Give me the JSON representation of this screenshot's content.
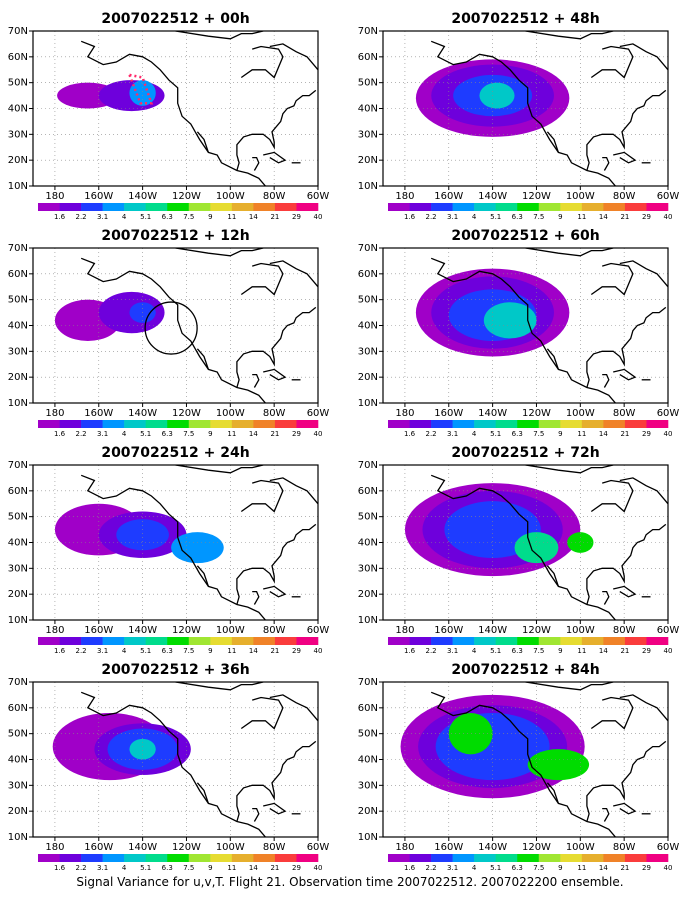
{
  "chart_data": {
    "type": "heatmap",
    "caption": "Signal Variance for u,v,T. Flight 21. Observation time 2007022512. 2007022200 ensemble.",
    "colorbar": {
      "colors": [
        "#a000c8",
        "#6e00dc",
        "#1e3cff",
        "#0096ff",
        "#00c8c8",
        "#00dc8c",
        "#00dc00",
        "#a0e632",
        "#e6dc32",
        "#e6af2d",
        "#f08228",
        "#fa3c3c",
        "#f00082"
      ],
      "labels": [
        "1.6",
        "2.2",
        "3.1",
        "4",
        "5.1",
        "6.3",
        "7.5",
        "9",
        "11",
        "14",
        "21",
        "29",
        "40"
      ]
    },
    "x_ticks": [
      "180",
      "160W",
      "140W",
      "120W",
      "100W",
      "80W",
      "60W"
    ],
    "y_ticks": [
      "10N",
      "20N",
      "30N",
      "40N",
      "50N",
      "60N",
      "70N"
    ],
    "xlim": [
      -190,
      -60
    ],
    "ylim": [
      10,
      70
    ],
    "panels": [
      {
        "title": "2007022512 + 00h",
        "blobs": [
          [
            -165,
            45,
            14,
            5,
            0
          ],
          [
            -145,
            45,
            15,
            6,
            1
          ],
          [
            -140,
            46,
            6,
            5,
            3
          ]
        ],
        "annotation": "flight-box"
      },
      {
        "title": "2007022512 + 12h",
        "blobs": [
          [
            -165,
            42,
            15,
            8,
            0
          ],
          [
            -145,
            45,
            15,
            8,
            1
          ],
          [
            -140,
            45,
            6,
            4,
            2
          ]
        ],
        "annotation": "circle"
      },
      {
        "title": "2007022512 + 24h",
        "blobs": [
          [
            -160,
            45,
            20,
            10,
            0
          ],
          [
            -140,
            43,
            20,
            9,
            1
          ],
          [
            -140,
            43,
            12,
            6,
            2
          ],
          [
            -115,
            38,
            12,
            6,
            3
          ]
        ]
      },
      {
        "title": "2007022512 + 36h",
        "blobs": [
          [
            -155,
            45,
            26,
            13,
            0
          ],
          [
            -140,
            44,
            22,
            10,
            1
          ],
          [
            -140,
            44,
            16,
            8,
            2
          ],
          [
            -140,
            44,
            6,
            4,
            4
          ]
        ]
      },
      {
        "title": "2007022512 + 48h",
        "blobs": [
          [
            -140,
            44,
            35,
            15,
            0
          ],
          [
            -140,
            45,
            28,
            12,
            1
          ],
          [
            -140,
            45,
            18,
            8,
            2
          ],
          [
            -138,
            45,
            8,
            5,
            4
          ]
        ]
      },
      {
        "title": "2007022512 + 60h",
        "blobs": [
          [
            -140,
            45,
            35,
            17,
            0
          ],
          [
            -140,
            45,
            28,
            14,
            1
          ],
          [
            -140,
            44,
            20,
            10,
            2
          ],
          [
            -132,
            42,
            12,
            7,
            4
          ]
        ]
      },
      {
        "title": "2007022512 + 72h",
        "blobs": [
          [
            -140,
            45,
            40,
            18,
            0
          ],
          [
            -140,
            45,
            32,
            15,
            1
          ],
          [
            -140,
            45,
            22,
            11,
            2
          ],
          [
            -120,
            38,
            10,
            6,
            5
          ],
          [
            -100,
            40,
            6,
            4,
            6
          ]
        ]
      },
      {
        "title": "2007022512 + 84h",
        "blobs": [
          [
            -140,
            45,
            42,
            20,
            0
          ],
          [
            -140,
            45,
            34,
            16,
            1
          ],
          [
            -140,
            45,
            26,
            13,
            2
          ],
          [
            -150,
            50,
            10,
            8,
            6
          ],
          [
            -110,
            38,
            14,
            6,
            6
          ]
        ]
      }
    ]
  }
}
